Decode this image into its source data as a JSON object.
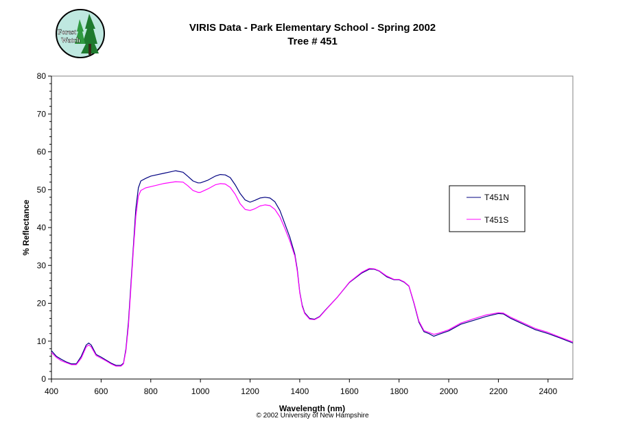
{
  "page": {
    "title": "VIRIS Data - Park Elementary School - Spring 2002",
    "subtitle": "Tree # 451",
    "copyright": "© 2002 University of New Hampshire",
    "logo_text": [
      "Forest",
      "Watch"
    ]
  },
  "chart_data": {
    "type": "line",
    "title": "VIRIS Data - Park Elementary School - Spring 2002",
    "subtitle": "Tree # 451",
    "xlabel": "Wavelength (nm)",
    "ylabel": "% Reflectance",
    "xlim": [
      400,
      2500
    ],
    "ylim": [
      0,
      80
    ],
    "xticks": [
      400,
      600,
      800,
      1000,
      1200,
      1400,
      1600,
      1800,
      2000,
      2200,
      2400
    ],
    "yticks": [
      0,
      10,
      20,
      30,
      40,
      50,
      60,
      70,
      80
    ],
    "grid": false,
    "legend_position": "right",
    "series": [
      {
        "name": "T451N",
        "color": "#000080",
        "points": [
          [
            400,
            7.5
          ],
          [
            420,
            6
          ],
          [
            440,
            5.2
          ],
          [
            460,
            4.5
          ],
          [
            480,
            4
          ],
          [
            500,
            4
          ],
          [
            520,
            6
          ],
          [
            540,
            9
          ],
          [
            550,
            9.5
          ],
          [
            560,
            9
          ],
          [
            580,
            6.5
          ],
          [
            600,
            5.8
          ],
          [
            620,
            5
          ],
          [
            640,
            4.2
          ],
          [
            660,
            3.6
          ],
          [
            680,
            3.6
          ],
          [
            690,
            4.2
          ],
          [
            700,
            8
          ],
          [
            710,
            15
          ],
          [
            720,
            25
          ],
          [
            730,
            35
          ],
          [
            740,
            45
          ],
          [
            750,
            50.5
          ],
          [
            760,
            52.3
          ],
          [
            780,
            53
          ],
          [
            800,
            53.6
          ],
          [
            850,
            54.3
          ],
          [
            900,
            55
          ],
          [
            930,
            54.6
          ],
          [
            950,
            53.5
          ],
          [
            970,
            52.3
          ],
          [
            990,
            51.8
          ],
          [
            1000,
            51.8
          ],
          [
            1030,
            52.5
          ],
          [
            1060,
            53.6
          ],
          [
            1080,
            54
          ],
          [
            1100,
            53.9
          ],
          [
            1120,
            53.2
          ],
          [
            1140,
            51.3
          ],
          [
            1160,
            49
          ],
          [
            1180,
            47.3
          ],
          [
            1200,
            46.7
          ],
          [
            1220,
            47.2
          ],
          [
            1240,
            47.8
          ],
          [
            1260,
            48
          ],
          [
            1280,
            47.8
          ],
          [
            1300,
            46.8
          ],
          [
            1320,
            44.5
          ],
          [
            1340,
            41
          ],
          [
            1360,
            37.5
          ],
          [
            1380,
            33
          ],
          [
            1390,
            29
          ],
          [
            1400,
            23
          ],
          [
            1410,
            19.5
          ],
          [
            1420,
            17.5
          ],
          [
            1440,
            16
          ],
          [
            1460,
            15.8
          ],
          [
            1480,
            16.5
          ],
          [
            1500,
            18
          ],
          [
            1550,
            21.5
          ],
          [
            1600,
            25.5
          ],
          [
            1650,
            28
          ],
          [
            1680,
            29
          ],
          [
            1700,
            29
          ],
          [
            1720,
            28.5
          ],
          [
            1750,
            27
          ],
          [
            1780,
            26.2
          ],
          [
            1800,
            26.2
          ],
          [
            1820,
            25.6
          ],
          [
            1840,
            24.5
          ],
          [
            1860,
            20
          ],
          [
            1880,
            15
          ],
          [
            1900,
            12.5
          ],
          [
            1920,
            12
          ],
          [
            1940,
            11.3
          ],
          [
            1960,
            11.8
          ],
          [
            2000,
            12.7
          ],
          [
            2050,
            14.5
          ],
          [
            2100,
            15.5
          ],
          [
            2150,
            16.5
          ],
          [
            2200,
            17.3
          ],
          [
            2220,
            17.2
          ],
          [
            2250,
            16
          ],
          [
            2300,
            14.5
          ],
          [
            2350,
            13
          ],
          [
            2400,
            12
          ],
          [
            2450,
            10.8
          ],
          [
            2500,
            9.5
          ]
        ]
      },
      {
        "name": "T451S",
        "color": "#ff00ff",
        "points": [
          [
            400,
            7
          ],
          [
            420,
            5.7
          ],
          [
            440,
            4.8
          ],
          [
            460,
            4.3
          ],
          [
            480,
            3.8
          ],
          [
            500,
            3.8
          ],
          [
            520,
            5.5
          ],
          [
            540,
            8.5
          ],
          [
            550,
            9
          ],
          [
            560,
            8.5
          ],
          [
            580,
            6.2
          ],
          [
            600,
            5.5
          ],
          [
            620,
            4.8
          ],
          [
            640,
            4
          ],
          [
            660,
            3.4
          ],
          [
            680,
            3.4
          ],
          [
            690,
            4
          ],
          [
            700,
            7.5
          ],
          [
            710,
            14
          ],
          [
            720,
            24
          ],
          [
            730,
            34
          ],
          [
            740,
            43
          ],
          [
            750,
            48.3
          ],
          [
            760,
            49.8
          ],
          [
            780,
            50.5
          ],
          [
            800,
            50.8
          ],
          [
            850,
            51.6
          ],
          [
            900,
            52.1
          ],
          [
            930,
            52
          ],
          [
            950,
            51
          ],
          [
            970,
            49.8
          ],
          [
            990,
            49.3
          ],
          [
            1000,
            49.3
          ],
          [
            1030,
            50.2
          ],
          [
            1060,
            51.3
          ],
          [
            1080,
            51.6
          ],
          [
            1100,
            51.5
          ],
          [
            1120,
            50.6
          ],
          [
            1140,
            48.8
          ],
          [
            1160,
            46.3
          ],
          [
            1180,
            44.8
          ],
          [
            1200,
            44.5
          ],
          [
            1220,
            45
          ],
          [
            1240,
            45.7
          ],
          [
            1260,
            46
          ],
          [
            1280,
            45.8
          ],
          [
            1300,
            44.8
          ],
          [
            1320,
            42.8
          ],
          [
            1340,
            39.8
          ],
          [
            1360,
            36.5
          ],
          [
            1380,
            32.5
          ],
          [
            1390,
            28.5
          ],
          [
            1400,
            22.8
          ],
          [
            1410,
            19.2
          ],
          [
            1420,
            17.3
          ],
          [
            1440,
            15.8
          ],
          [
            1460,
            15.7
          ],
          [
            1480,
            16.4
          ],
          [
            1500,
            17.9
          ],
          [
            1550,
            21.5
          ],
          [
            1600,
            25.6
          ],
          [
            1650,
            28.2
          ],
          [
            1680,
            29.2
          ],
          [
            1700,
            29.1
          ],
          [
            1720,
            28.6
          ],
          [
            1750,
            27.2
          ],
          [
            1780,
            26.3
          ],
          [
            1800,
            26.3
          ],
          [
            1820,
            25.7
          ],
          [
            1840,
            24.6
          ],
          [
            1860,
            20.2
          ],
          [
            1880,
            15.3
          ],
          [
            1900,
            12.8
          ],
          [
            1920,
            12.3
          ],
          [
            1940,
            11.8
          ],
          [
            1960,
            12.1
          ],
          [
            2000,
            13
          ],
          [
            2050,
            14.8
          ],
          [
            2100,
            15.9
          ],
          [
            2150,
            16.9
          ],
          [
            2200,
            17.5
          ],
          [
            2220,
            17.4
          ],
          [
            2250,
            16.3
          ],
          [
            2300,
            14.8
          ],
          [
            2350,
            13.3
          ],
          [
            2400,
            12.3
          ],
          [
            2450,
            11
          ],
          [
            2500,
            9.8
          ]
        ]
      }
    ]
  }
}
